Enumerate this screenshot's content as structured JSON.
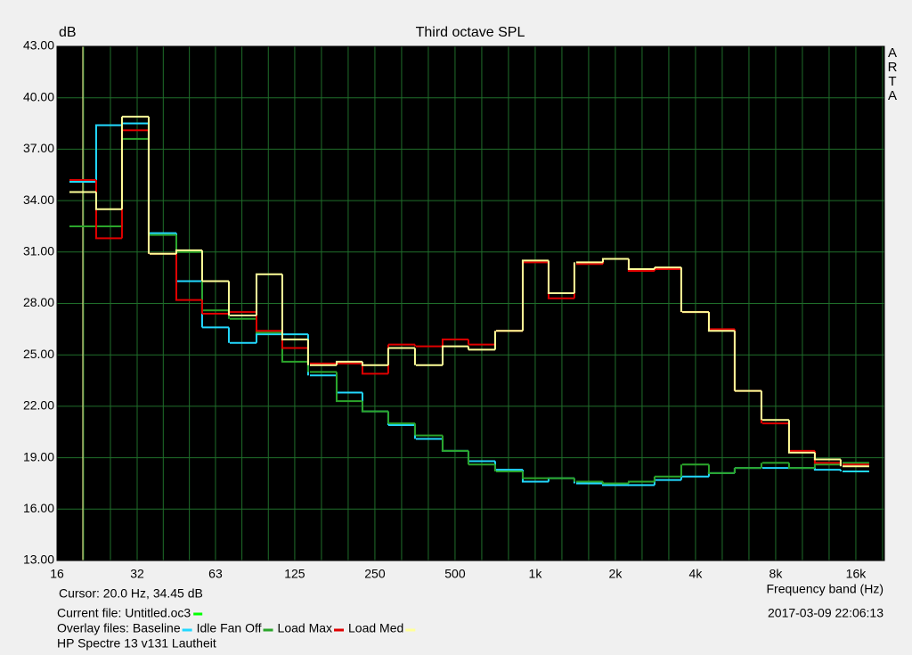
{
  "chart_data": {
    "type": "step",
    "title": "Third octave SPL",
    "y_label": "dB",
    "x_label": "Frequency band (Hz)",
    "brand": "ARTA",
    "cursor_text": "Cursor:    20.0 Hz, 34.45 dB",
    "cursor_x": 20,
    "cursor_color": "#ffff99",
    "current_file": "Current file: Untitled.oc3",
    "current_file_color": "#00ff00",
    "overlay_label": "Overlay files:",
    "timestamp": "2017-03-09  22:06:13",
    "footer": "HP Spectre 13 v131 Lautheit",
    "log_x": true,
    "grid": true,
    "xlim": [
      16,
      20480
    ],
    "xticks": [
      16,
      32,
      63,
      125,
      250,
      500,
      {
        "value": 1000,
        "label": "1k"
      },
      {
        "value": 2000,
        "label": "2k"
      },
      {
        "value": 4000,
        "label": "4k"
      },
      {
        "value": 8000,
        "label": "8k"
      },
      {
        "value": 16000,
        "label": "16k"
      }
    ],
    "ylim": [
      13,
      43
    ],
    "yticks": [
      {
        "value": 13,
        "label": "13.00"
      },
      {
        "value": 16,
        "label": "16.00"
      },
      {
        "value": 19,
        "label": "19.00"
      },
      {
        "value": 22,
        "label": "22.00"
      },
      {
        "value": 25,
        "label": "25.00"
      },
      {
        "value": 28,
        "label": "28.00"
      },
      {
        "value": 31,
        "label": "31.00"
      },
      {
        "value": 34,
        "label": "34.00"
      },
      {
        "value": 37,
        "label": "37.00"
      },
      {
        "value": 40,
        "label": "40.00"
      },
      {
        "value": 43,
        "label": "43.00"
      }
    ],
    "x": [
      20,
      25,
      31.5,
      40,
      50,
      63,
      80,
      100,
      125,
      160,
      200,
      250,
      315,
      400,
      500,
      630,
      800,
      1000,
      1250,
      1600,
      2000,
      2500,
      3150,
      4000,
      5000,
      6300,
      8000,
      10000,
      12500,
      16000
    ],
    "series": [
      {
        "name": "Baseline",
        "color": "#22d8ff",
        "values": [
          35.1,
          38.4,
          38.5,
          32.1,
          29.3,
          26.6,
          25.7,
          26.2,
          26.2,
          23.8,
          22.8,
          21.7,
          20.9,
          20.1,
          19.4,
          18.8,
          18.3,
          17.6,
          17.8,
          17.5,
          17.4,
          17.4,
          17.7,
          17.9,
          18.1,
          18.4,
          18.4,
          18.4,
          18.3,
          18.2
        ]
      },
      {
        "name": "Idle Fan Off",
        "color": "#2ba52b",
        "values": [
          32.5,
          32.5,
          37.6,
          32.0,
          31.0,
          27.6,
          27.1,
          26.3,
          24.6,
          24.0,
          22.3,
          21.7,
          21.0,
          20.3,
          19.4,
          18.6,
          18.2,
          17.8,
          17.8,
          17.6,
          17.5,
          17.6,
          17.9,
          18.6,
          18.1,
          18.4,
          18.7,
          18.4,
          18.6,
          18.7
        ]
      },
      {
        "name": "Load Max",
        "color": "#e00000",
        "values": [
          35.2,
          31.8,
          38.1,
          30.9,
          28.2,
          27.4,
          27.5,
          26.4,
          25.4,
          24.5,
          24.5,
          23.9,
          25.6,
          25.5,
          25.9,
          25.6,
          26.4,
          30.4,
          28.3,
          30.3,
          30.6,
          29.9,
          30.0,
          27.5,
          26.5,
          22.9,
          21.0,
          19.4,
          18.7,
          18.6
        ]
      },
      {
        "name": "Load Med",
        "color": "#ffff99",
        "values": [
          34.5,
          33.5,
          38.9,
          30.9,
          31.1,
          29.3,
          27.3,
          29.7,
          25.9,
          24.4,
          24.6,
          24.4,
          25.4,
          24.4,
          25.5,
          25.3,
          26.4,
          30.5,
          28.6,
          30.4,
          30.6,
          30.0,
          30.1,
          27.5,
          26.4,
          22.9,
          21.2,
          19.3,
          18.9,
          18.5
        ]
      }
    ]
  }
}
